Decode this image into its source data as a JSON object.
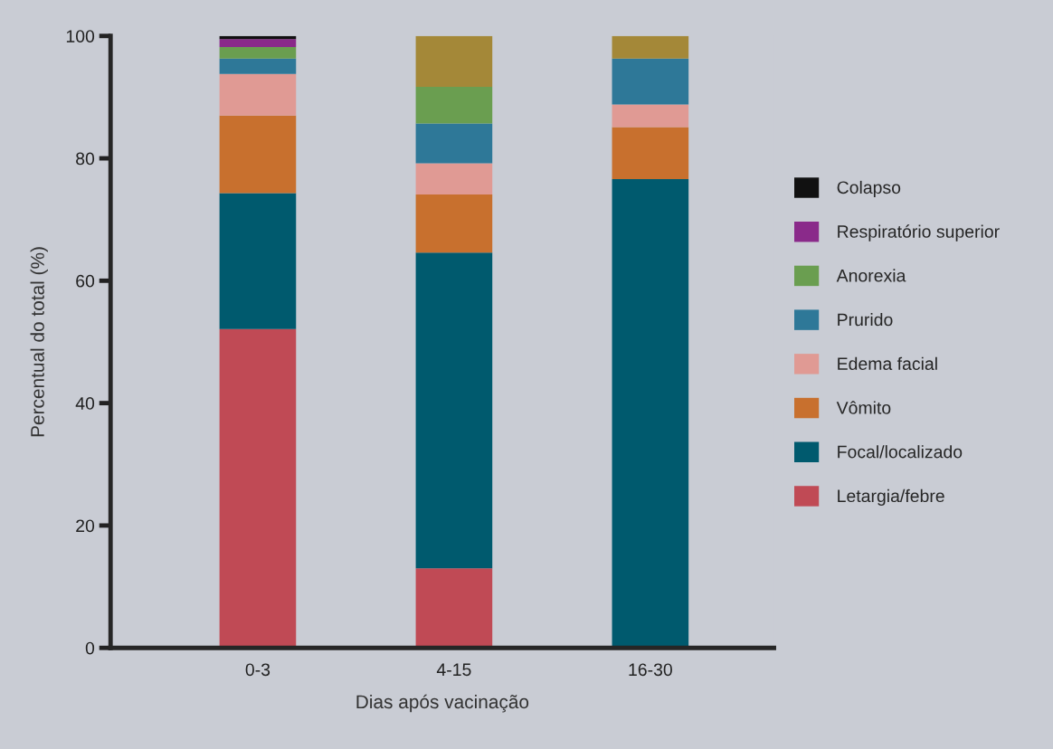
{
  "chart_data": {
    "type": "bar",
    "stacked": true,
    "xlabel": "Dias após vacinação",
    "ylabel": "Percentual do total (%)",
    "categories": [
      "0-3",
      "4-15",
      "16-30"
    ],
    "series": [
      {
        "name": "Letargia/febre",
        "color": "#c04a55",
        "values": [
          52.1,
          13.0,
          0
        ]
      },
      {
        "name": "Focal/localizado",
        "color": "#005a6e",
        "values": [
          22.2,
          51.6,
          76.6
        ]
      },
      {
        "name": "Vômito",
        "color": "#c8702e",
        "values": [
          12.7,
          9.5,
          8.5
        ]
      },
      {
        "name": "Edema facial",
        "color": "#e09a94",
        "values": [
          6.8,
          5.1,
          3.7
        ]
      },
      {
        "name": "Prurido",
        "color": "#2e7898",
        "values": [
          2.5,
          6.5,
          7.5
        ]
      },
      {
        "name": "Anorexia",
        "color": "#6a9e50",
        "values": [
          1.9,
          6.0,
          0
        ]
      },
      {
        "name": "Respiratório superior",
        "color": "#8a2a8a",
        "values": [
          1.3,
          0,
          0
        ]
      },
      {
        "name": "Colapso",
        "color": "#111111",
        "values": [
          0.5,
          0,
          0
        ]
      },
      {
        "color": "#a48838",
        "values": [
          0,
          8.3,
          3.7
        ]
      }
    ],
    "ylim": [
      0,
      100
    ],
    "yticks": [
      0,
      20,
      40,
      60,
      80,
      100
    ],
    "legend": "right"
  }
}
